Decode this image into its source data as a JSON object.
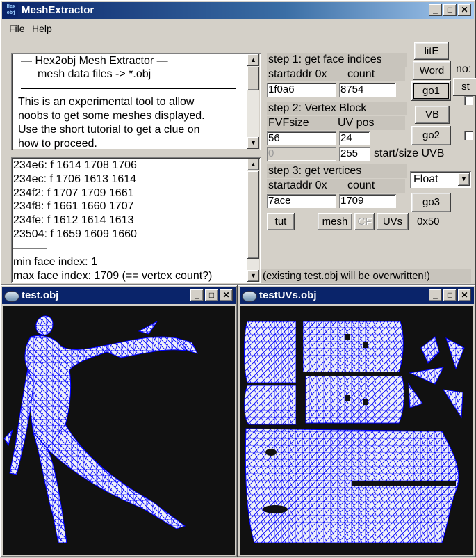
{
  "main_window": {
    "title": "MeshExtractor",
    "icon_text": "Hex obj",
    "menu": [
      "File",
      "Help"
    ]
  },
  "info_text": {
    "lines": [
      "—   Hex2obj Mesh Extractor   —",
      "mesh data files -> *.obj",
      "This is an experimental tool to allow",
      "noobs to get some meshes displayed.",
      "Use the short tutorial to get a clue on",
      "how to proceed."
    ]
  },
  "log": {
    "lines": [
      "234e6: f  1614 1708 1706",
      "234ec: f  1706 1613 1614",
      "234f2: f  1707 1709 1661",
      "234f8: f  1661 1660 1707",
      "234fe: f  1612 1614 1613",
      "23504: f  1659 1609 1660",
      "———",
      "min face index: 1",
      "max face index: 1709 (== vertex count?)"
    ]
  },
  "step1": {
    "title": "step 1: get face indices",
    "addr_label": "startaddr 0x",
    "count_label": "count",
    "addr": "1f0a6",
    "count": "8754"
  },
  "step2": {
    "title": "step 2: Vertex Block",
    "fvf_label": "FVFsize",
    "uv_label": "UV pos",
    "fvf": "56",
    "uvpos": "24",
    "start_uvb": "0",
    "size_uvb": "255",
    "uvb_label": "start/size UVB"
  },
  "step3": {
    "title": "step 3: get vertices",
    "addr_label": "startaddr 0x",
    "count_label": "count",
    "addr": "7ace",
    "count": "1709",
    "format": "Float"
  },
  "buttons": {
    "lite": "litE",
    "word": "Word",
    "go1": "go1",
    "vb": "VB",
    "go2": "go2",
    "go3": "go3",
    "tut": "tut",
    "mesh": "mesh",
    "cf": "CF",
    "uvs": "UVs",
    "hex": "0x50",
    "no": "no:",
    "st": "st"
  },
  "status": "(existing test.obj will be overwritten!)",
  "viewer1": {
    "title": "test.obj"
  },
  "viewer2": {
    "title": "testUVs.obj"
  },
  "colors": {
    "mesh": "#0000ff",
    "fill": "#f0f0f8",
    "background": "#111111"
  }
}
